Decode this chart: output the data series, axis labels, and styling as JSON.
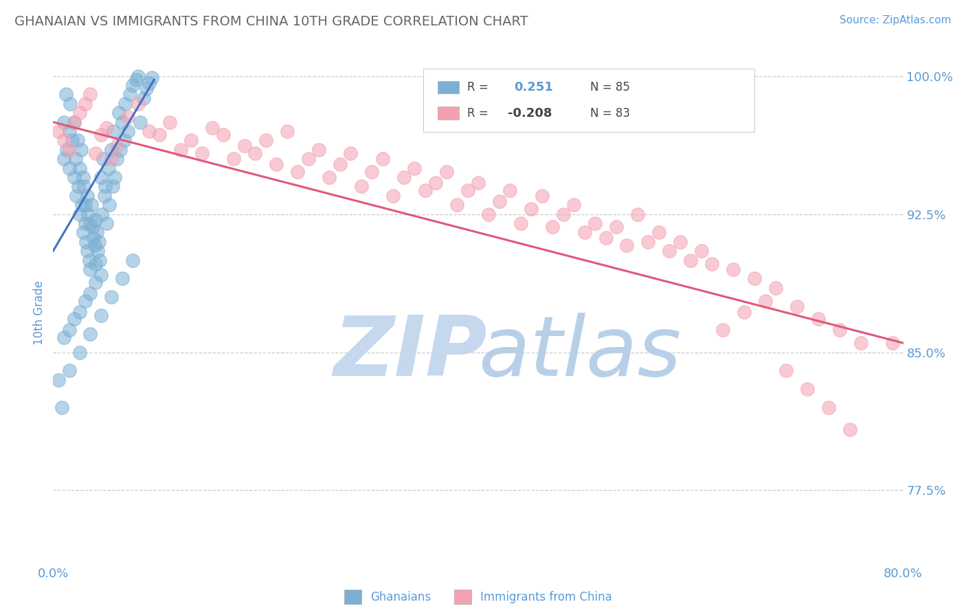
{
  "title": "GHANAIAN VS IMMIGRANTS FROM CHINA 10TH GRADE CORRELATION CHART",
  "source_text": "Source: ZipAtlas.com",
  "ylabel": "10th Grade",
  "xlim": [
    0.0,
    0.8
  ],
  "ylim": [
    0.735,
    1.008
  ],
  "yticks": [
    0.775,
    0.85,
    0.925,
    1.0
  ],
  "ytick_labels": [
    "77.5%",
    "85.0%",
    "92.5%",
    "100.0%"
  ],
  "xticks": [
    0.0,
    0.8
  ],
  "xtick_labels": [
    "0.0%",
    "80.0%"
  ],
  "r_ghanaian": 0.251,
  "n_ghanaian": 85,
  "r_china": -0.208,
  "n_china": 83,
  "color_ghanaian": "#7bafd4",
  "color_china": "#f4a0b0",
  "trendline_color_ghanaian": "#4472c4",
  "trendline_color_china": "#e05878",
  "background_color": "#ffffff",
  "title_color": "#666666",
  "axis_label_color": "#5b9bd5",
  "watermark_color": "#cddcee",
  "ghanaian_x": [
    0.005,
    0.008,
    0.01,
    0.01,
    0.012,
    0.013,
    0.015,
    0.015,
    0.016,
    0.018,
    0.02,
    0.02,
    0.021,
    0.022,
    0.023,
    0.024,
    0.025,
    0.025,
    0.026,
    0.027,
    0.028,
    0.028,
    0.029,
    0.03,
    0.03,
    0.031,
    0.032,
    0.032,
    0.033,
    0.034,
    0.035,
    0.035,
    0.036,
    0.037,
    0.038,
    0.039,
    0.04,
    0.04,
    0.041,
    0.042,
    0.043,
    0.044,
    0.045,
    0.046,
    0.047,
    0.048,
    0.049,
    0.05,
    0.052,
    0.053,
    0.055,
    0.056,
    0.057,
    0.058,
    0.06,
    0.062,
    0.063,
    0.065,
    0.067,
    0.068,
    0.07,
    0.072,
    0.075,
    0.078,
    0.08,
    0.082,
    0.085,
    0.088,
    0.09,
    0.093,
    0.01,
    0.015,
    0.02,
    0.025,
    0.03,
    0.035,
    0.04,
    0.045,
    0.015,
    0.025,
    0.035,
    0.045,
    0.055,
    0.065,
    0.075
  ],
  "ghanaian_y": [
    0.835,
    0.82,
    0.975,
    0.955,
    0.99,
    0.96,
    0.97,
    0.95,
    0.985,
    0.965,
    0.975,
    0.945,
    0.955,
    0.935,
    0.965,
    0.94,
    0.95,
    0.925,
    0.96,
    0.93,
    0.945,
    0.915,
    0.94,
    0.92,
    0.93,
    0.91,
    0.935,
    0.905,
    0.925,
    0.9,
    0.92,
    0.895,
    0.93,
    0.918,
    0.912,
    0.908,
    0.922,
    0.898,
    0.915,
    0.905,
    0.91,
    0.9,
    0.945,
    0.925,
    0.955,
    0.935,
    0.94,
    0.92,
    0.95,
    0.93,
    0.96,
    0.94,
    0.97,
    0.945,
    0.955,
    0.98,
    0.96,
    0.975,
    0.965,
    0.985,
    0.97,
    0.99,
    0.995,
    0.998,
    1.0,
    0.975,
    0.988,
    0.993,
    0.996,
    0.999,
    0.858,
    0.862,
    0.868,
    0.872,
    0.878,
    0.882,
    0.888,
    0.892,
    0.84,
    0.85,
    0.86,
    0.87,
    0.88,
    0.89,
    0.9
  ],
  "china_x": [
    0.005,
    0.01,
    0.015,
    0.02,
    0.025,
    0.03,
    0.035,
    0.04,
    0.045,
    0.05,
    0.055,
    0.06,
    0.07,
    0.08,
    0.09,
    0.1,
    0.11,
    0.12,
    0.13,
    0.14,
    0.15,
    0.16,
    0.17,
    0.18,
    0.19,
    0.2,
    0.21,
    0.22,
    0.23,
    0.24,
    0.25,
    0.26,
    0.27,
    0.28,
    0.29,
    0.3,
    0.31,
    0.32,
    0.33,
    0.34,
    0.35,
    0.36,
    0.37,
    0.38,
    0.39,
    0.4,
    0.41,
    0.42,
    0.43,
    0.44,
    0.45,
    0.46,
    0.47,
    0.48,
    0.49,
    0.5,
    0.51,
    0.52,
    0.53,
    0.54,
    0.55,
    0.56,
    0.57,
    0.58,
    0.59,
    0.6,
    0.61,
    0.62,
    0.63,
    0.64,
    0.65,
    0.66,
    0.67,
    0.68,
    0.69,
    0.7,
    0.71,
    0.72,
    0.73,
    0.74,
    0.75,
    0.76,
    0.79
  ],
  "china_y": [
    0.97,
    0.965,
    0.96,
    0.975,
    0.98,
    0.985,
    0.99,
    0.958,
    0.968,
    0.972,
    0.955,
    0.962,
    0.978,
    0.985,
    0.97,
    0.968,
    0.975,
    0.96,
    0.965,
    0.958,
    0.972,
    0.968,
    0.955,
    0.962,
    0.958,
    0.965,
    0.952,
    0.97,
    0.948,
    0.955,
    0.96,
    0.945,
    0.952,
    0.958,
    0.94,
    0.948,
    0.955,
    0.935,
    0.945,
    0.95,
    0.938,
    0.942,
    0.948,
    0.93,
    0.938,
    0.942,
    0.925,
    0.932,
    0.938,
    0.92,
    0.928,
    0.935,
    0.918,
    0.925,
    0.93,
    0.915,
    0.92,
    0.912,
    0.918,
    0.908,
    0.925,
    0.91,
    0.915,
    0.905,
    0.91,
    0.9,
    0.905,
    0.898,
    0.862,
    0.895,
    0.872,
    0.89,
    0.878,
    0.885,
    0.84,
    0.875,
    0.83,
    0.868,
    0.82,
    0.862,
    0.808,
    0.855,
    0.855
  ],
  "trendline_ghanaian_x0": 0.0,
  "trendline_ghanaian_y0": 0.905,
  "trendline_ghanaian_x1": 0.095,
  "trendline_ghanaian_y1": 0.998,
  "trendline_china_x0": 0.0,
  "trendline_china_y0": 0.975,
  "trendline_china_x1": 0.8,
  "trendline_china_y1": 0.855
}
